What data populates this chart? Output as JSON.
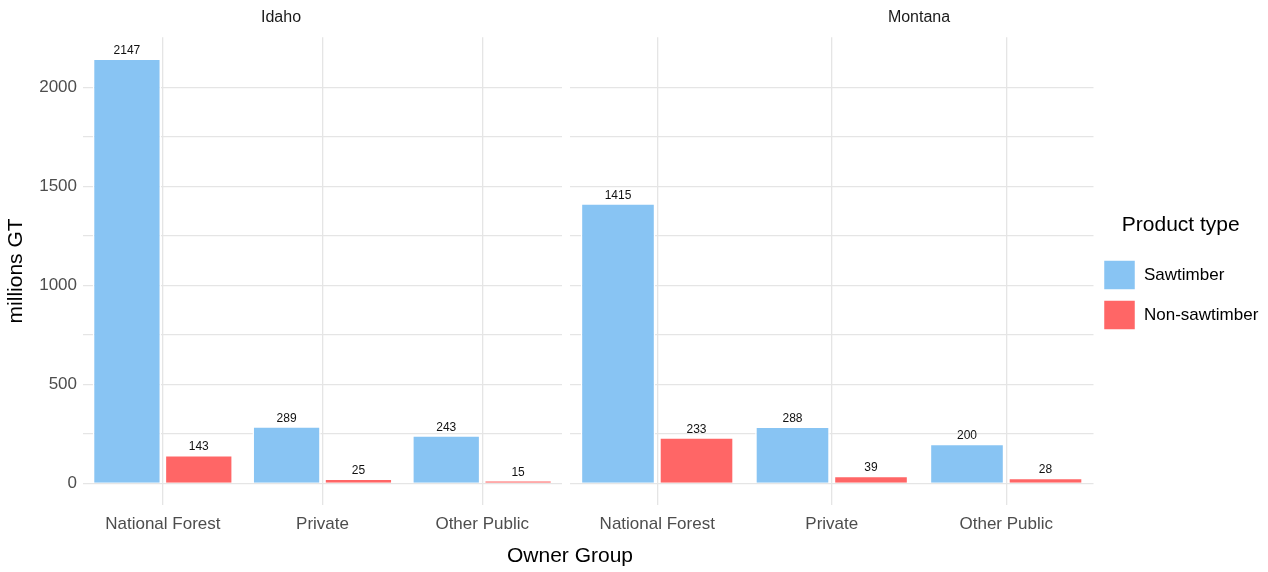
{
  "chart_data": [
    {
      "type": "bar",
      "title": "Idaho",
      "xlabel": "Owner Group",
      "ylabel": "millions GT",
      "categories": [
        "National Forest",
        "Private",
        "Other Public"
      ],
      "series": [
        {
          "color": "#88c4f3",
          "values": [
            2147,
            289,
            243
          ]
        },
        {
          "color": "#ff6666",
          "values": [
            143,
            25,
            15
          ]
        }
      ],
      "ylim": [
        -107,
        2254
      ],
      "yticks": [
        0,
        {
          "value": 250,
          "label": null
        },
        500,
        {
          "value": 750,
          "label": null
        },
        1000,
        {
          "value": 1250,
          "label": null
        },
        1500,
        {
          "value": 1750,
          "label": null
        },
        2000
      ],
      "grid": true,
      "data_labels": true,
      "legend": false
    },
    {
      "type": "bar",
      "title": "Montana",
      "categories": [
        "National Forest",
        "Private",
        "Other Public"
      ],
      "series": [
        {
          "name": "Sawtimber",
          "color": "#88c4f3",
          "values": [
            1415,
            288,
            200
          ]
        },
        {
          "name": "Non-sawtimber",
          "color": "#ff6666",
          "values": [
            233,
            39,
            28
          ]
        }
      ],
      "ylim": [
        -107,
        2254
      ],
      "yticks": [
        0,
        {
          "value": 250,
          "label": null
        },
        500,
        {
          "value": 750,
          "label": null
        },
        1000,
        {
          "value": 1250,
          "label": null
        },
        1500,
        {
          "value": 1750,
          "label": null
        },
        2000
      ],
      "grid": true,
      "data_labels": true,
      "legend": "right",
      "legend_title": "Product type",
      "tick_labels": "x"
    }
  ]
}
